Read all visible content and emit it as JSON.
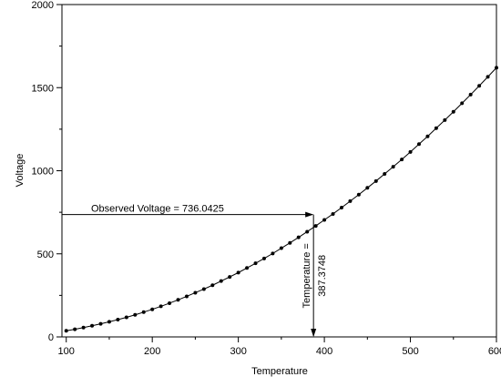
{
  "chart_data": {
    "type": "line",
    "xlabel": "Temperature",
    "ylabel": "Voltage",
    "xlim": [
      95,
      600
    ],
    "ylim": [
      0,
      2000
    ],
    "x_ticks": [
      100,
      200,
      300,
      400,
      500,
      600
    ],
    "x_tick_labels": [
      "100",
      "200",
      "300",
      "400",
      "500",
      "600"
    ],
    "y_ticks": [
      0,
      500,
      1000,
      1500,
      2000
    ],
    "y_tick_labels": [
      "0",
      "500",
      "1000",
      "1500",
      "2000"
    ],
    "grid": false,
    "series": [
      {
        "markers": true,
        "x": [
          100,
          110,
          120,
          130,
          140,
          150,
          160,
          170,
          180,
          190,
          200,
          210,
          220,
          230,
          240,
          250,
          260,
          270,
          280,
          290,
          300,
          310,
          320,
          330,
          340,
          350,
          360,
          370,
          380,
          390,
          400,
          410,
          420,
          430,
          440,
          450,
          460,
          470,
          480,
          490,
          500,
          510,
          520,
          530,
          540,
          550,
          560,
          570,
          580,
          590,
          600
        ],
        "y": [
          37,
          46,
          56,
          67,
          79,
          91,
          104,
          118,
          133,
          149,
          166,
          184,
          203,
          223,
          244,
          266,
          288,
          311,
          336,
          361,
          387,
          415,
          443,
          472,
          502,
          534,
          566,
          599,
          633,
          668,
          704,
          740,
          778,
          817,
          856,
          897,
          938,
          981,
          1024,
          1068,
          1113,
          1160,
          1207,
          1256,
          1305,
          1355,
          1406,
          1458,
          1511,
          1565,
          1620
        ]
      }
    ],
    "annotations": {
      "observed_voltage_label": "Observed Voltage = 736.0425",
      "observed_voltage": 736.0425,
      "temperature_label_line1": "Temperature =",
      "temperature_label_line2": "387.3748",
      "temperature": 387.3748
    }
  }
}
